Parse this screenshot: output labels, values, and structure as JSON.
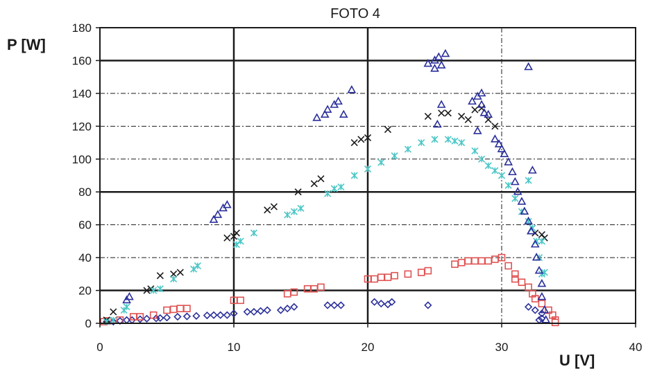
{
  "chart_data": {
    "type": "scatter",
    "title": "FOTO 4",
    "xlabel": "U [V]",
    "ylabel": "P [W]",
    "xlim": [
      0,
      40
    ],
    "ylim": [
      0,
      180
    ],
    "x_ticks": [
      0,
      10,
      20,
      30,
      40
    ],
    "y_ticks": [
      0,
      20,
      40,
      60,
      80,
      100,
      120,
      140,
      160,
      180
    ],
    "x_tick_labels": [
      "0",
      "10",
      "20",
      "30",
      "40"
    ],
    "y_tick_labels": [
      "0",
      "20",
      "40",
      "60",
      "80",
      "100",
      "120",
      "140",
      "160",
      "180"
    ],
    "grid": {
      "solid_horizontal": [
        20,
        80,
        160
      ],
      "dashdot_horizontal": [
        40,
        60,
        100,
        120,
        140
      ],
      "solid_vertical": [
        10,
        20
      ],
      "dashdot_vertical": [
        30
      ]
    },
    "legend": "none",
    "series": [
      {
        "marker": "diamond-open",
        "color": "#2a2f9a",
        "points": [
          [
            0.5,
            1
          ],
          [
            1,
            1
          ],
          [
            1.5,
            1.5
          ],
          [
            2,
            2
          ],
          [
            2.4,
            2
          ],
          [
            3,
            2.5
          ],
          [
            3.5,
            2.8
          ],
          [
            4.2,
            3
          ],
          [
            4.5,
            3.2
          ],
          [
            5,
            3.5
          ],
          [
            5.8,
            4
          ],
          [
            6.5,
            4.2
          ],
          [
            7.2,
            4.5
          ],
          [
            8,
            4.8
          ],
          [
            8.5,
            5
          ],
          [
            9,
            5
          ],
          [
            9.5,
            5
          ],
          [
            10,
            6
          ],
          [
            11,
            7
          ],
          [
            11.5,
            7
          ],
          [
            12,
            7.5
          ],
          [
            12.5,
            8
          ],
          [
            13.5,
            8
          ],
          [
            14,
            9
          ],
          [
            14.5,
            10
          ],
          [
            17,
            11
          ],
          [
            17.5,
            11
          ],
          [
            18,
            11
          ],
          [
            20.5,
            13
          ],
          [
            21,
            12
          ],
          [
            21.5,
            11.5
          ],
          [
            21.8,
            13
          ],
          [
            24.5,
            11
          ],
          [
            32,
            10
          ],
          [
            32.5,
            8
          ],
          [
            33,
            6
          ],
          [
            33,
            3
          ],
          [
            32.8,
            2
          ]
        ]
      },
      {
        "marker": "square-open",
        "color": "#e05252",
        "points": [
          [
            0.3,
            1
          ],
          [
            0.6,
            1.5
          ],
          [
            1.5,
            2
          ],
          [
            2.5,
            4
          ],
          [
            3,
            4
          ],
          [
            4,
            5
          ],
          [
            5,
            8
          ],
          [
            5.5,
            8.5
          ],
          [
            6,
            9
          ],
          [
            6.5,
            9
          ],
          [
            10,
            14
          ],
          [
            10.5,
            14
          ],
          [
            14,
            18
          ],
          [
            14.5,
            19
          ],
          [
            15.5,
            21
          ],
          [
            16,
            21
          ],
          [
            16.5,
            22
          ],
          [
            20,
            27
          ],
          [
            20.5,
            27
          ],
          [
            21,
            28
          ],
          [
            21.5,
            28
          ],
          [
            22,
            29
          ],
          [
            23,
            30
          ],
          [
            24,
            31
          ],
          [
            24.5,
            32
          ],
          [
            26.5,
            36
          ],
          [
            27,
            37
          ],
          [
            27.5,
            38
          ],
          [
            28,
            38
          ],
          [
            28.5,
            38
          ],
          [
            29,
            38
          ],
          [
            29.5,
            39
          ],
          [
            30,
            40
          ],
          [
            30.5,
            35
          ],
          [
            31,
            30
          ],
          [
            31,
            27
          ],
          [
            31.5,
            25
          ],
          [
            32,
            22
          ],
          [
            32.3,
            18
          ],
          [
            32.5,
            15
          ],
          [
            33,
            12
          ],
          [
            33.5,
            8
          ],
          [
            33.8,
            5
          ],
          [
            34,
            2
          ],
          [
            34,
            0.5
          ]
        ]
      },
      {
        "marker": "x",
        "color": "#1a1a1a",
        "points": [
          [
            0.5,
            2
          ],
          [
            1,
            7
          ],
          [
            3.5,
            20
          ],
          [
            3.8,
            21
          ],
          [
            4.5,
            29
          ],
          [
            5.5,
            30
          ],
          [
            6,
            31
          ],
          [
            9.5,
            52
          ],
          [
            10,
            53
          ],
          [
            10.2,
            55
          ],
          [
            12.5,
            69
          ],
          [
            13,
            71
          ],
          [
            14.8,
            80
          ],
          [
            16,
            85
          ],
          [
            16.5,
            88
          ],
          [
            19,
            110
          ],
          [
            19.5,
            112
          ],
          [
            20,
            113
          ],
          [
            21.5,
            118
          ],
          [
            24.5,
            126
          ],
          [
            25.5,
            128
          ],
          [
            26,
            128
          ],
          [
            27,
            126
          ],
          [
            27.5,
            124
          ],
          [
            28,
            130
          ],
          [
            28.5,
            131
          ],
          [
            29,
            124
          ],
          [
            29.5,
            120
          ],
          [
            32.5,
            55
          ],
          [
            33,
            54
          ],
          [
            33.2,
            52
          ]
        ]
      },
      {
        "marker": "asterisk",
        "color": "#4cc6c6",
        "points": [
          [
            0.5,
            1
          ],
          [
            1,
            2
          ],
          [
            1.8,
            8
          ],
          [
            2,
            10
          ],
          [
            4,
            20
          ],
          [
            4.5,
            21
          ],
          [
            5.5,
            27
          ],
          [
            7,
            33
          ],
          [
            7.3,
            35
          ],
          [
            10.2,
            48
          ],
          [
            10.5,
            50
          ],
          [
            11.5,
            55
          ],
          [
            14,
            66
          ],
          [
            14.5,
            68
          ],
          [
            15,
            70
          ],
          [
            17,
            79
          ],
          [
            17.5,
            82
          ],
          [
            18,
            83
          ],
          [
            19,
            90
          ],
          [
            20,
            94
          ],
          [
            21,
            98
          ],
          [
            22,
            102
          ],
          [
            23,
            106
          ],
          [
            24,
            110
          ],
          [
            25,
            112
          ],
          [
            26,
            112
          ],
          [
            26.5,
            111
          ],
          [
            27,
            110
          ],
          [
            28,
            105
          ],
          [
            28.5,
            100
          ],
          [
            29,
            96
          ],
          [
            29.5,
            93
          ],
          [
            30,
            90
          ],
          [
            30.5,
            84
          ],
          [
            31,
            76
          ],
          [
            31.5,
            68
          ],
          [
            32,
            62
          ],
          [
            32.3,
            58
          ],
          [
            32.6,
            50
          ],
          [
            32.8,
            40
          ],
          [
            33,
            30
          ],
          [
            32,
            87
          ],
          [
            33,
            50
          ],
          [
            33.2,
            31
          ]
        ]
      },
      {
        "marker": "triangle-open",
        "color": "#2a2f9a",
        "points": [
          [
            2,
            14
          ],
          [
            2.2,
            16
          ],
          [
            8.5,
            63
          ],
          [
            8.8,
            66
          ],
          [
            9.2,
            70
          ],
          [
            9.5,
            72
          ],
          [
            16.2,
            125
          ],
          [
            16.8,
            127
          ],
          [
            17,
            130
          ],
          [
            17.5,
            133
          ],
          [
            17.8,
            135
          ],
          [
            18.2,
            127
          ],
          [
            18.8,
            142
          ],
          [
            24.5,
            158
          ],
          [
            25,
            160
          ],
          [
            25.3,
            162
          ],
          [
            25.8,
            164
          ],
          [
            25.5,
            157
          ],
          [
            25,
            155
          ],
          [
            25.5,
            133
          ],
          [
            25.2,
            121
          ],
          [
            27.8,
            135
          ],
          [
            28.2,
            138
          ],
          [
            28.5,
            140
          ],
          [
            28.5,
            133
          ],
          [
            28.7,
            128
          ],
          [
            29,
            127
          ],
          [
            28.2,
            117
          ],
          [
            29.5,
            112
          ],
          [
            29.8,
            109
          ],
          [
            30,
            106
          ],
          [
            30.2,
            103
          ],
          [
            30.5,
            98
          ],
          [
            30.8,
            92
          ],
          [
            31,
            86
          ],
          [
            31.2,
            80
          ],
          [
            31.5,
            74
          ],
          [
            31.7,
            68
          ],
          [
            32,
            62
          ],
          [
            32.2,
            56
          ],
          [
            32.5,
            48
          ],
          [
            32.6,
            40
          ],
          [
            32.8,
            32
          ],
          [
            33,
            24
          ],
          [
            33,
            16
          ],
          [
            33.2,
            8
          ],
          [
            33.3,
            2
          ],
          [
            32,
            156
          ],
          [
            32.3,
            93
          ],
          [
            32.2,
            56
          ]
        ]
      }
    ]
  }
}
